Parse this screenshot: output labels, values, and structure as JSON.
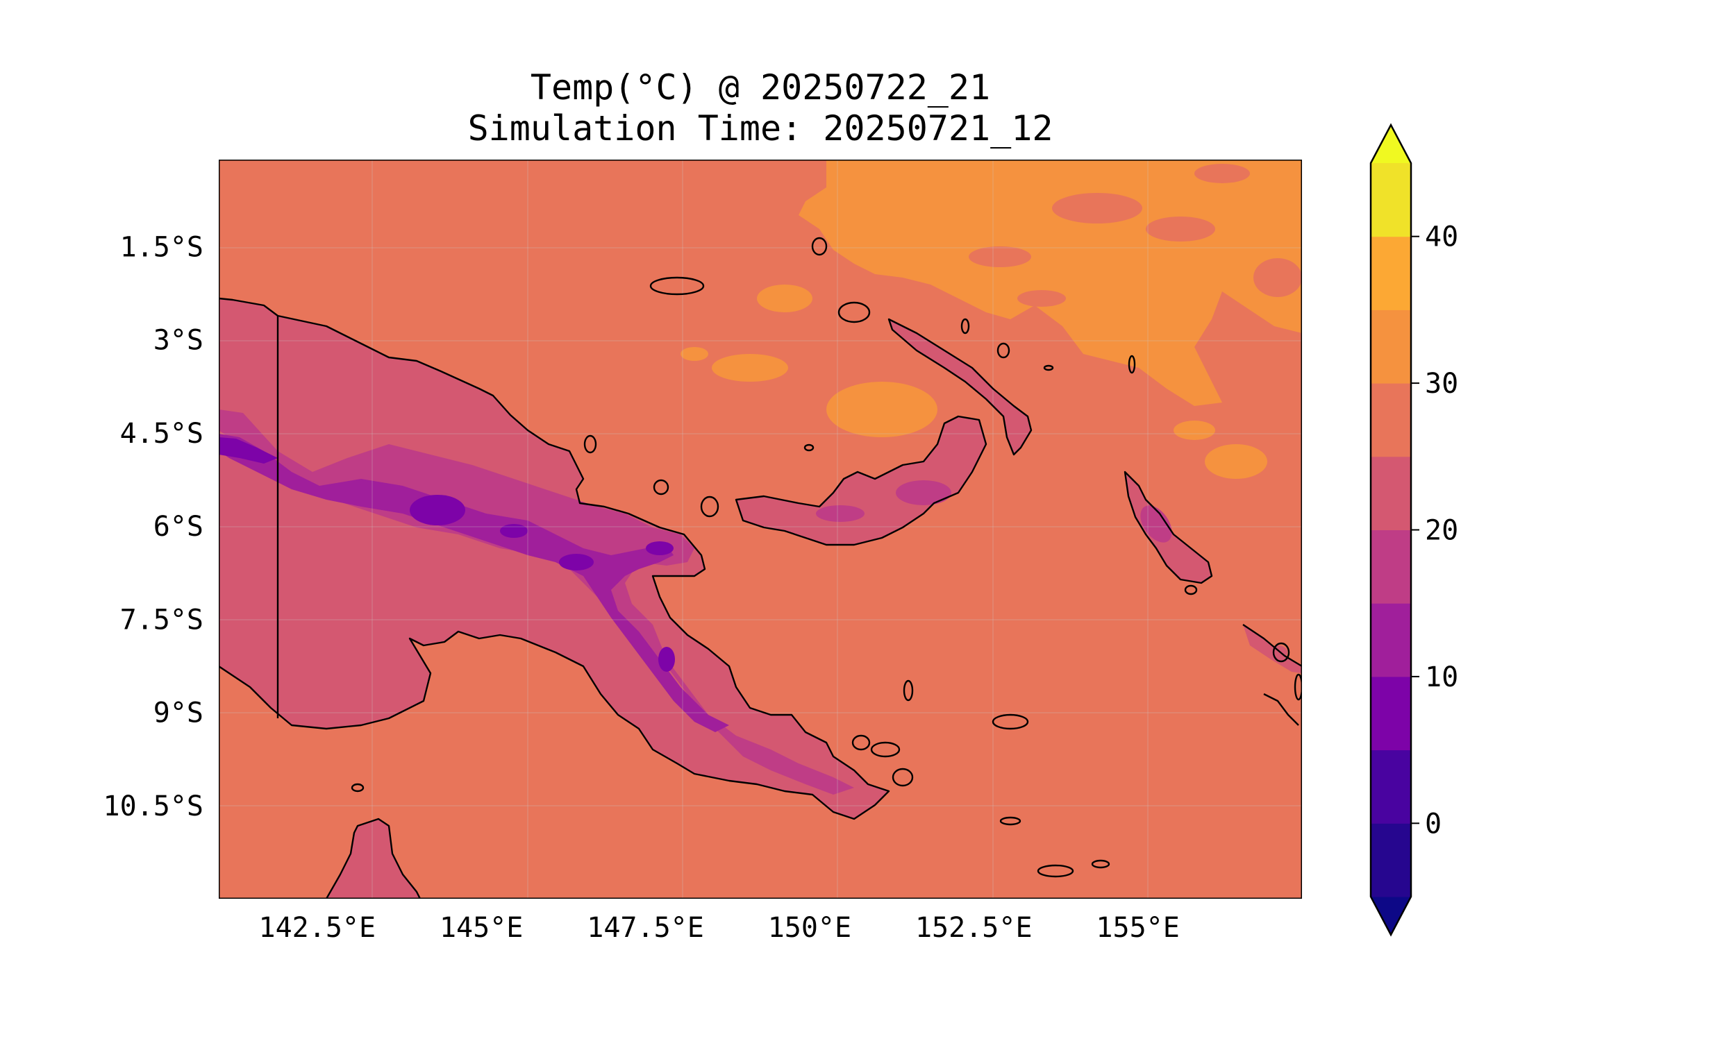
{
  "title": {
    "line1": "Temp(°C) @ 20250722_21",
    "line2": "Simulation Time: 20250721_12"
  },
  "map": {
    "lat_labels": [
      "1.5°S",
      "3°S",
      "4.5°S",
      "6°S",
      "7.5°S",
      "9°S",
      "10.5°S"
    ],
    "lat_values": [
      -1.5,
      -3,
      -4.5,
      -6,
      -7.5,
      -9,
      -10.5
    ],
    "lon_labels": [
      "142.5°E",
      "145°E",
      "147.5°E",
      "150°E",
      "152.5°E",
      "155°E"
    ],
    "lon_values": [
      142.5,
      145,
      147.5,
      150,
      152.5,
      155
    ],
    "lon_range": [
      141,
      157.5
    ],
    "lat_range": [
      -12,
      -0.1
    ],
    "base_fill": "#e8755a",
    "warm_fill": "#f5923f",
    "highland_colors": [
      "#d45871",
      "#bf3d86",
      "#a01f9b",
      "#7d03a8"
    ]
  },
  "colorbar": {
    "tick_labels": [
      "0",
      "10",
      "20",
      "30",
      "40"
    ],
    "tick_values": [
      0,
      10,
      20,
      30,
      40
    ],
    "levels": [
      -5,
      0,
      5,
      10,
      15,
      20,
      25,
      30,
      35,
      40,
      45
    ],
    "colors": [
      "#26068f",
      "#4903a0",
      "#7d03a8",
      "#a01f9b",
      "#bf3d86",
      "#d45871",
      "#e8755a",
      "#f5923f",
      "#fca834",
      "#f0e229"
    ],
    "under_color": "#0d0887",
    "over_color": "#f0f921"
  }
}
